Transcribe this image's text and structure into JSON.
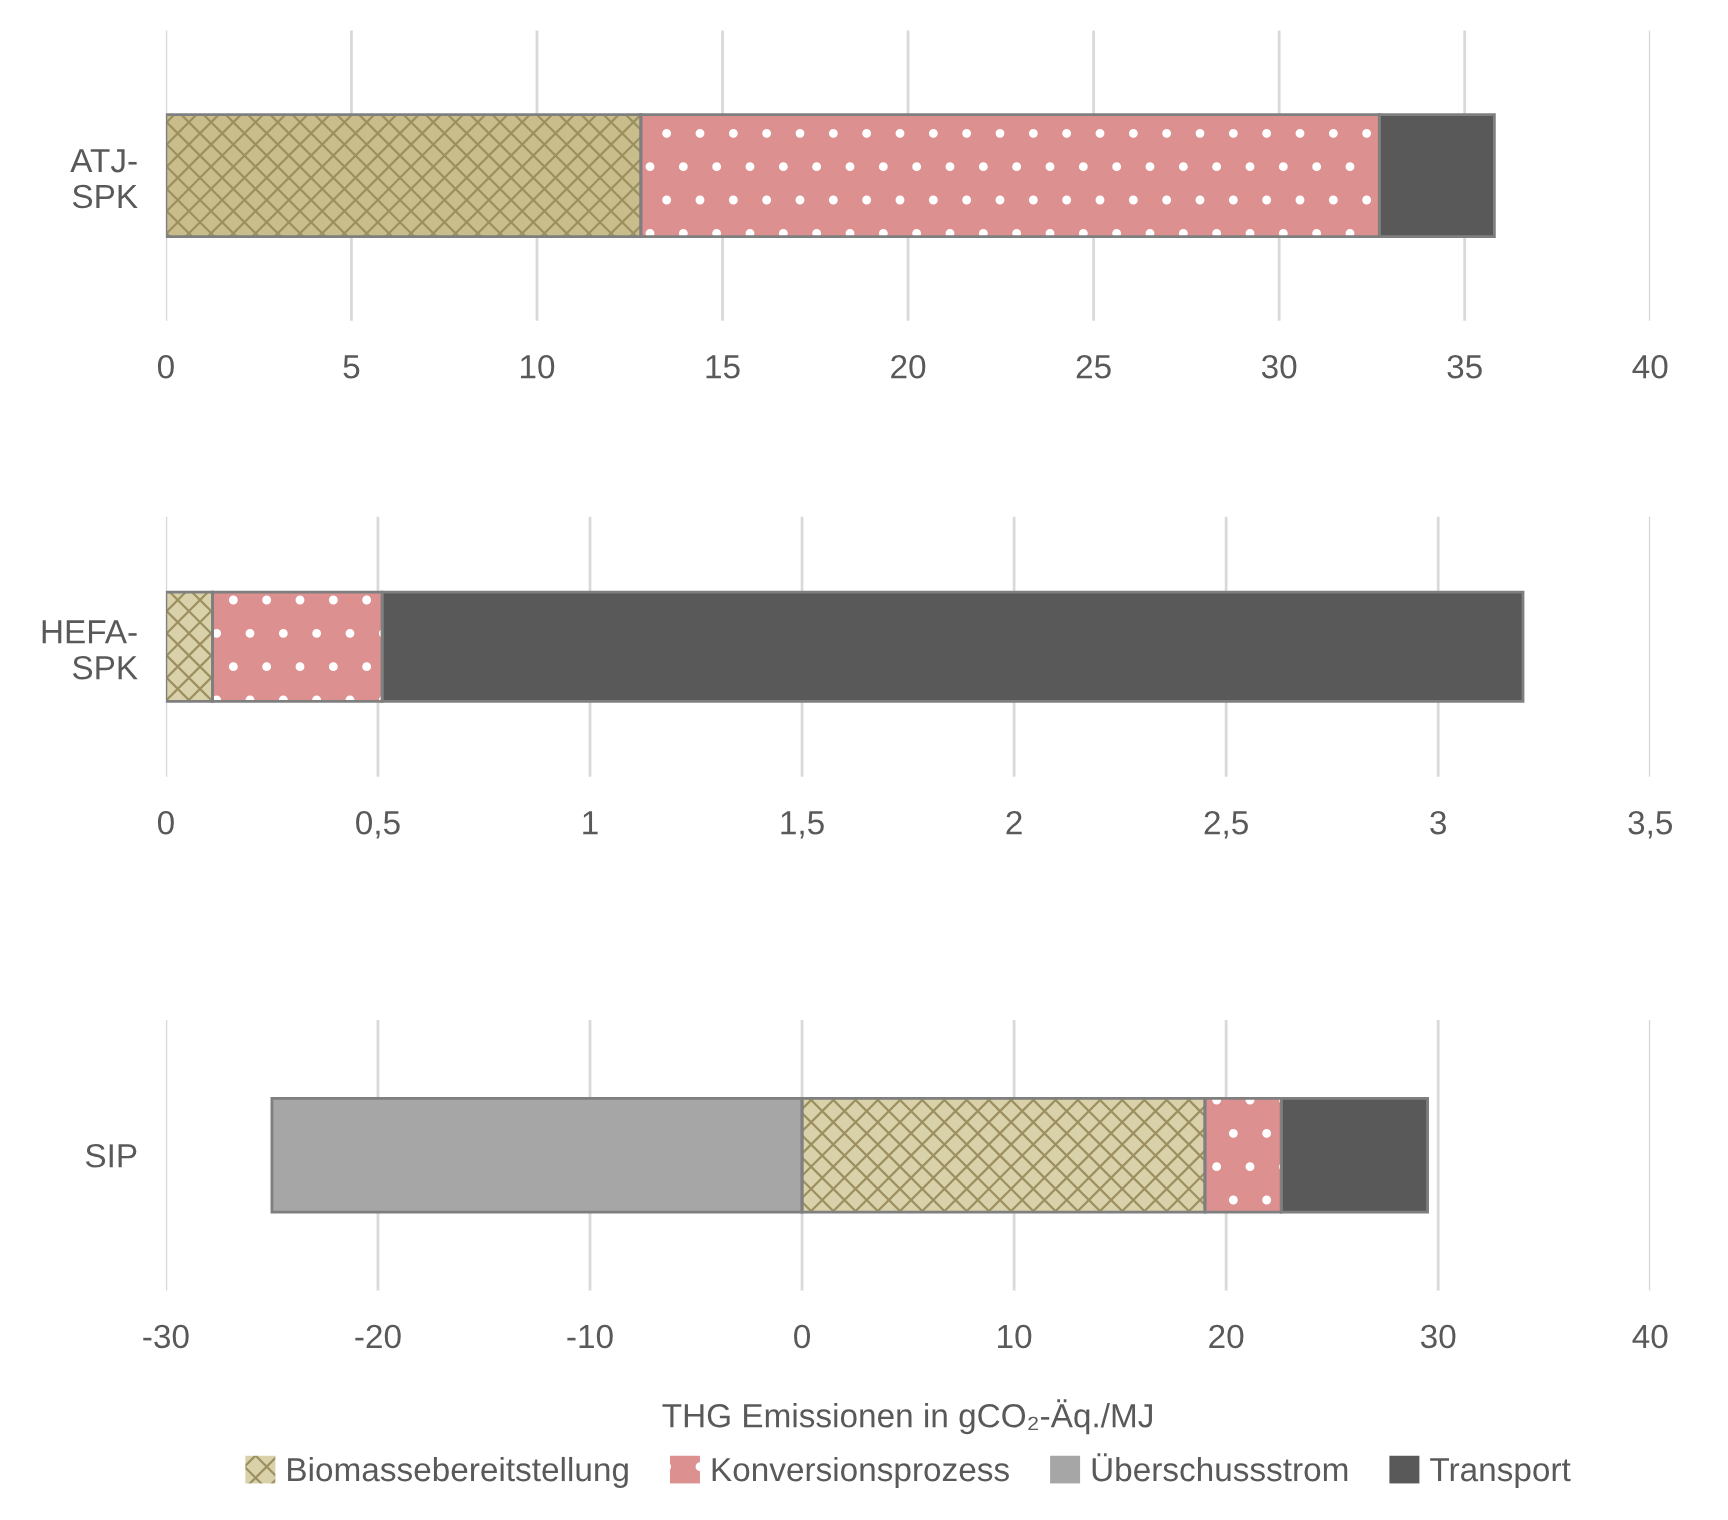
{
  "chart_data": [
    {
      "type": "bar",
      "orientation": "horizontal",
      "stacked": true,
      "categories": [
        "ATJ-\nSPK"
      ],
      "grid": "x",
      "xlim": [
        0,
        40
      ],
      "xticks": [
        0,
        5,
        10,
        15,
        20,
        25,
        30,
        35,
        40
      ],
      "series": [
        {
          "color": "#c9bd8c",
          "values": [
            12.8
          ]
        },
        {
          "color": "#dc9090",
          "values": [
            19.9
          ]
        },
        {
          "color": "#a6a6a6",
          "values": [
            null
          ]
        },
        {
          "color": "#595959",
          "values": [
            3.1
          ]
        }
      ]
    },
    {
      "type": "bar",
      "orientation": "horizontal",
      "stacked": true,
      "categories": [
        "HEFA-\nSPK"
      ],
      "grid": "x",
      "xlim": [
        0,
        3.5
      ],
      "xticks": [
        0,
        {
          "value": 0.5,
          "label": "0,5"
        },
        1,
        {
          "value": 1.5,
          "label": "1,5"
        },
        2,
        {
          "value": 2.5,
          "label": "2,5"
        },
        3,
        {
          "value": 3.5,
          "label": "3,5"
        }
      ],
      "series": [
        {
          "color": "#d9d1aa",
          "values": [
            0.11
          ]
        },
        {
          "color": "#dc9090",
          "values": [
            0.4
          ]
        },
        {
          "color": "#a6a6a6",
          "values": [
            null
          ]
        },
        {
          "color": "#595959",
          "values": [
            2.69
          ]
        }
      ]
    },
    {
      "type": "bar",
      "orientation": "horizontal",
      "stacked": true,
      "categories": [
        "SIP"
      ],
      "grid": "x",
      "xlim": [
        -30,
        40
      ],
      "xticks": [
        -30,
        -20,
        -10,
        0,
        10,
        20,
        30,
        40
      ],
      "xlabel": "THG Emissionen in gCO₂-Äq./MJ",
      "legend": "bottom",
      "series": [
        {
          "name": "Biomassebereitstellung",
          "color": "#d9d1aa",
          "values": [
            19.0
          ]
        },
        {
          "name": "Konversionsprozess",
          "color": "#dc9090",
          "values": [
            3.6
          ]
        },
        {
          "name": "Überschussstrom",
          "color": "#a6a6a6",
          "values": [
            -25
          ]
        },
        {
          "name": "Transport",
          "color": "#595959",
          "values": [
            6.9
          ]
        }
      ]
    }
  ]
}
